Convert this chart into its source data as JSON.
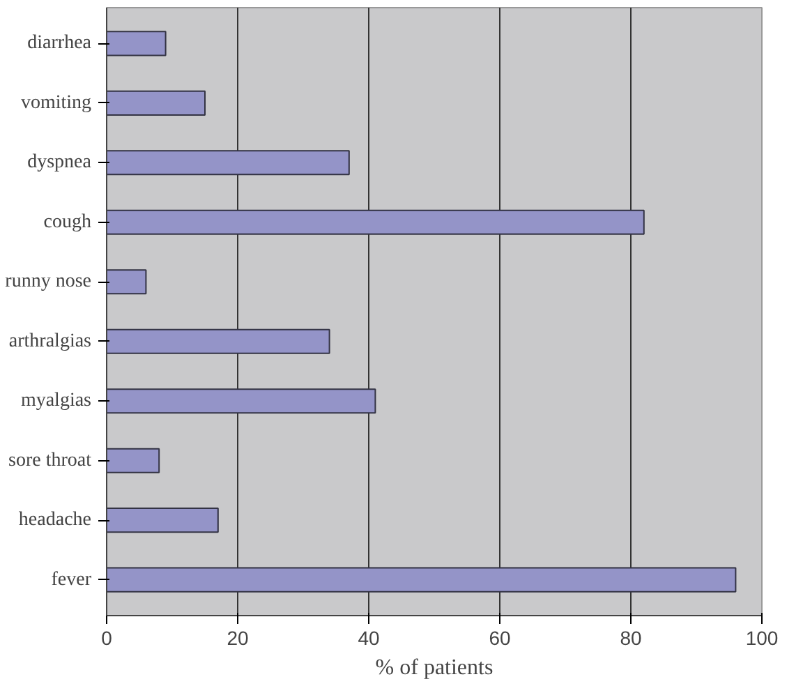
{
  "chart_data": {
    "type": "bar",
    "orientation": "horizontal",
    "xlabel": "% of patients",
    "categories": [
      "diarrhea",
      "vomiting",
      "dyspnea",
      "cough",
      "runny nose",
      "arthralgias",
      "myalgias",
      "sore throat",
      "headache",
      "fever"
    ],
    "values": [
      9,
      15,
      37,
      82,
      6,
      34,
      41,
      8,
      17,
      96
    ],
    "color": "#9494c8",
    "xlim": [
      0,
      100
    ],
    "xticks": [
      0,
      20,
      40,
      60,
      80,
      100
    ],
    "grid": "x"
  }
}
